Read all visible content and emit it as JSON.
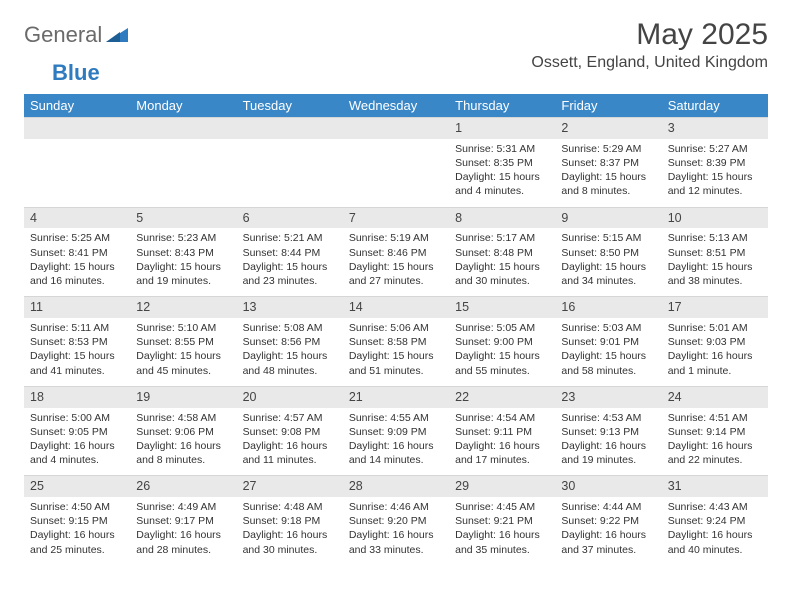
{
  "brand": {
    "part1": "General",
    "part2": "Blue"
  },
  "title": "May 2025",
  "location": "Ossett, England, United Kingdom",
  "colors": {
    "header_bg": "#3a87c7",
    "header_text": "#ffffff",
    "daynum_bg": "#e9e9e9",
    "text": "#333333",
    "brand_gray": "#6a6a6a",
    "brand_blue": "#2f7bbf"
  },
  "layout": {
    "cols": 7,
    "rows": 5,
    "first_weekday_index": 4
  },
  "weekdays": [
    "Sunday",
    "Monday",
    "Tuesday",
    "Wednesday",
    "Thursday",
    "Friday",
    "Saturday"
  ],
  "days": [
    {
      "n": "1",
      "sr": "Sunrise: 5:31 AM",
      "ss": "Sunset: 8:35 PM",
      "d1": "Daylight: 15 hours",
      "d2": "and 4 minutes."
    },
    {
      "n": "2",
      "sr": "Sunrise: 5:29 AM",
      "ss": "Sunset: 8:37 PM",
      "d1": "Daylight: 15 hours",
      "d2": "and 8 minutes."
    },
    {
      "n": "3",
      "sr": "Sunrise: 5:27 AM",
      "ss": "Sunset: 8:39 PM",
      "d1": "Daylight: 15 hours",
      "d2": "and 12 minutes."
    },
    {
      "n": "4",
      "sr": "Sunrise: 5:25 AM",
      "ss": "Sunset: 8:41 PM",
      "d1": "Daylight: 15 hours",
      "d2": "and 16 minutes."
    },
    {
      "n": "5",
      "sr": "Sunrise: 5:23 AM",
      "ss": "Sunset: 8:43 PM",
      "d1": "Daylight: 15 hours",
      "d2": "and 19 minutes."
    },
    {
      "n": "6",
      "sr": "Sunrise: 5:21 AM",
      "ss": "Sunset: 8:44 PM",
      "d1": "Daylight: 15 hours",
      "d2": "and 23 minutes."
    },
    {
      "n": "7",
      "sr": "Sunrise: 5:19 AM",
      "ss": "Sunset: 8:46 PM",
      "d1": "Daylight: 15 hours",
      "d2": "and 27 minutes."
    },
    {
      "n": "8",
      "sr": "Sunrise: 5:17 AM",
      "ss": "Sunset: 8:48 PM",
      "d1": "Daylight: 15 hours",
      "d2": "and 30 minutes."
    },
    {
      "n": "9",
      "sr": "Sunrise: 5:15 AM",
      "ss": "Sunset: 8:50 PM",
      "d1": "Daylight: 15 hours",
      "d2": "and 34 minutes."
    },
    {
      "n": "10",
      "sr": "Sunrise: 5:13 AM",
      "ss": "Sunset: 8:51 PM",
      "d1": "Daylight: 15 hours",
      "d2": "and 38 minutes."
    },
    {
      "n": "11",
      "sr": "Sunrise: 5:11 AM",
      "ss": "Sunset: 8:53 PM",
      "d1": "Daylight: 15 hours",
      "d2": "and 41 minutes."
    },
    {
      "n": "12",
      "sr": "Sunrise: 5:10 AM",
      "ss": "Sunset: 8:55 PM",
      "d1": "Daylight: 15 hours",
      "d2": "and 45 minutes."
    },
    {
      "n": "13",
      "sr": "Sunrise: 5:08 AM",
      "ss": "Sunset: 8:56 PM",
      "d1": "Daylight: 15 hours",
      "d2": "and 48 minutes."
    },
    {
      "n": "14",
      "sr": "Sunrise: 5:06 AM",
      "ss": "Sunset: 8:58 PM",
      "d1": "Daylight: 15 hours",
      "d2": "and 51 minutes."
    },
    {
      "n": "15",
      "sr": "Sunrise: 5:05 AM",
      "ss": "Sunset: 9:00 PM",
      "d1": "Daylight: 15 hours",
      "d2": "and 55 minutes."
    },
    {
      "n": "16",
      "sr": "Sunrise: 5:03 AM",
      "ss": "Sunset: 9:01 PM",
      "d1": "Daylight: 15 hours",
      "d2": "and 58 minutes."
    },
    {
      "n": "17",
      "sr": "Sunrise: 5:01 AM",
      "ss": "Sunset: 9:03 PM",
      "d1": "Daylight: 16 hours",
      "d2": "and 1 minute."
    },
    {
      "n": "18",
      "sr": "Sunrise: 5:00 AM",
      "ss": "Sunset: 9:05 PM",
      "d1": "Daylight: 16 hours",
      "d2": "and 4 minutes."
    },
    {
      "n": "19",
      "sr": "Sunrise: 4:58 AM",
      "ss": "Sunset: 9:06 PM",
      "d1": "Daylight: 16 hours",
      "d2": "and 8 minutes."
    },
    {
      "n": "20",
      "sr": "Sunrise: 4:57 AM",
      "ss": "Sunset: 9:08 PM",
      "d1": "Daylight: 16 hours",
      "d2": "and 11 minutes."
    },
    {
      "n": "21",
      "sr": "Sunrise: 4:55 AM",
      "ss": "Sunset: 9:09 PM",
      "d1": "Daylight: 16 hours",
      "d2": "and 14 minutes."
    },
    {
      "n": "22",
      "sr": "Sunrise: 4:54 AM",
      "ss": "Sunset: 9:11 PM",
      "d1": "Daylight: 16 hours",
      "d2": "and 17 minutes."
    },
    {
      "n": "23",
      "sr": "Sunrise: 4:53 AM",
      "ss": "Sunset: 9:13 PM",
      "d1": "Daylight: 16 hours",
      "d2": "and 19 minutes."
    },
    {
      "n": "24",
      "sr": "Sunrise: 4:51 AM",
      "ss": "Sunset: 9:14 PM",
      "d1": "Daylight: 16 hours",
      "d2": "and 22 minutes."
    },
    {
      "n": "25",
      "sr": "Sunrise: 4:50 AM",
      "ss": "Sunset: 9:15 PM",
      "d1": "Daylight: 16 hours",
      "d2": "and 25 minutes."
    },
    {
      "n": "26",
      "sr": "Sunrise: 4:49 AM",
      "ss": "Sunset: 9:17 PM",
      "d1": "Daylight: 16 hours",
      "d2": "and 28 minutes."
    },
    {
      "n": "27",
      "sr": "Sunrise: 4:48 AM",
      "ss": "Sunset: 9:18 PM",
      "d1": "Daylight: 16 hours",
      "d2": "and 30 minutes."
    },
    {
      "n": "28",
      "sr": "Sunrise: 4:46 AM",
      "ss": "Sunset: 9:20 PM",
      "d1": "Daylight: 16 hours",
      "d2": "and 33 minutes."
    },
    {
      "n": "29",
      "sr": "Sunrise: 4:45 AM",
      "ss": "Sunset: 9:21 PM",
      "d1": "Daylight: 16 hours",
      "d2": "and 35 minutes."
    },
    {
      "n": "30",
      "sr": "Sunrise: 4:44 AM",
      "ss": "Sunset: 9:22 PM",
      "d1": "Daylight: 16 hours",
      "d2": "and 37 minutes."
    },
    {
      "n": "31",
      "sr": "Sunrise: 4:43 AM",
      "ss": "Sunset: 9:24 PM",
      "d1": "Daylight: 16 hours",
      "d2": "and 40 minutes."
    }
  ]
}
